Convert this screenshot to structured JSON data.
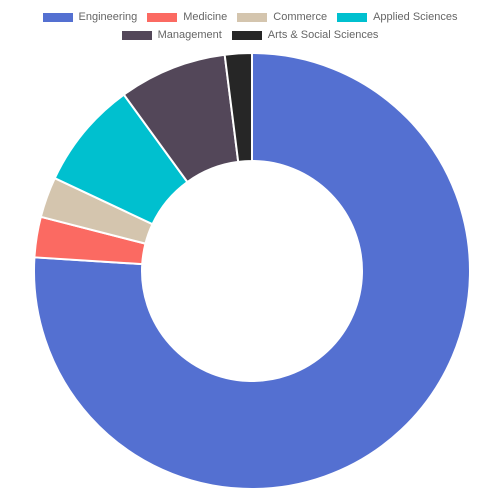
{
  "chart_data": {
    "type": "doughnut",
    "title": "",
    "legend_position": "top",
    "series": [
      {
        "name": "Engineering",
        "value": 76,
        "color": "#5470d1"
      },
      {
        "name": "Medicine",
        "value": 3,
        "color": "#fb6a62"
      },
      {
        "name": "Commerce",
        "value": 3,
        "color": "#d4c5ae"
      },
      {
        "name": "Applied Sciences",
        "value": 8,
        "color": "#00c0cf"
      },
      {
        "name": "Management",
        "value": 8,
        "color": "#534759"
      },
      {
        "name": "Arts & Social Sciences",
        "value": 2,
        "color": "#262626"
      }
    ]
  }
}
